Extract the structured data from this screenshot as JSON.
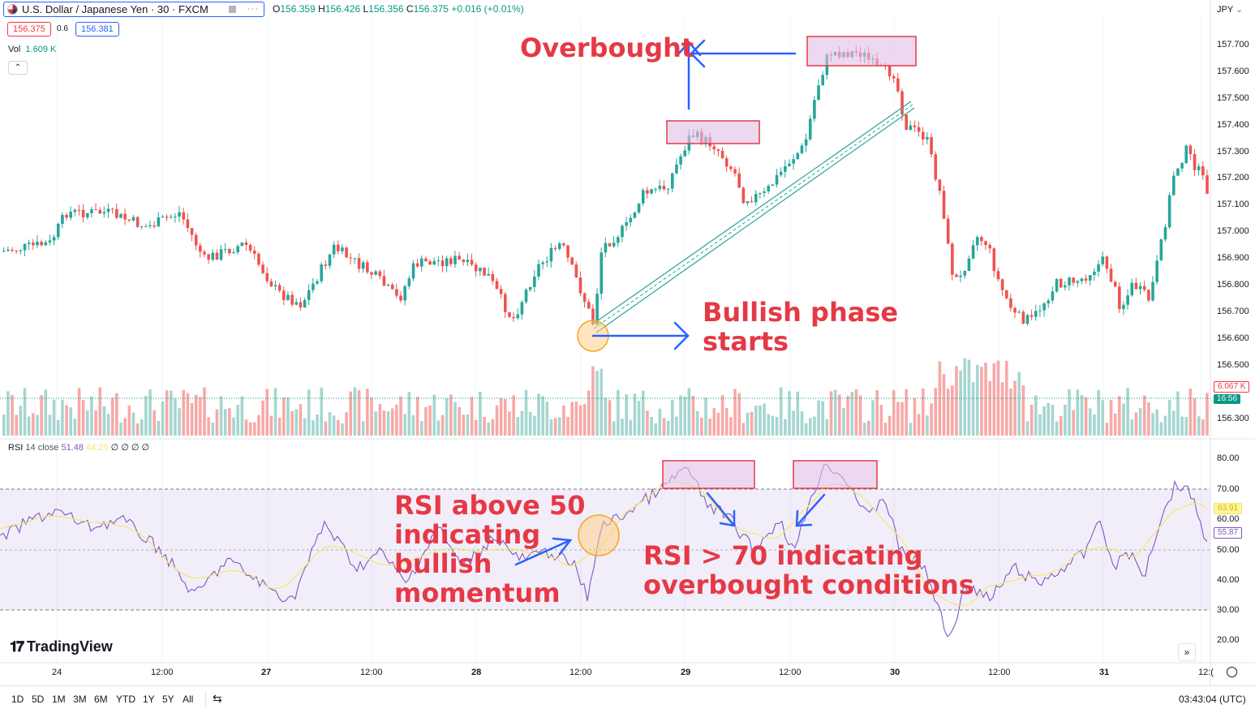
{
  "header": {
    "symbol": "U.S. Dollar / Japanese Yen · 30 · FXCM",
    "more_icon": "···",
    "ohlc": {
      "o_label": "O",
      "o": "156.359",
      "h_label": "H",
      "h": "156.426",
      "l_label": "L",
      "l": "156.356",
      "c_label": "C",
      "c": "156.375",
      "change": "+0.016 (+0.01%)"
    },
    "sell_price": "156.375",
    "spread": "0.6",
    "buy_price": "156.381",
    "vol_label": "Vol",
    "vol_value": "1.609 K",
    "currency": "JPY"
  },
  "price_axis": [
    "157.700",
    "157.600",
    "157.500",
    "157.400",
    "157.300",
    "157.200",
    "157.100",
    "157.000",
    "156.900",
    "156.800",
    "156.700",
    "156.600",
    "156.500",
    "156.300"
  ],
  "price_tags": {
    "volume_tag": "6.067 K",
    "countdown": "16:56"
  },
  "rsi": {
    "label": "RSI",
    "params": "14 close",
    "value1": "51.48",
    "value2": "44.25",
    "extras": "∅ ∅ ∅ ∅",
    "axis": [
      "80.00",
      "70.00",
      "60.00",
      "50.00",
      "40.00",
      "30.00",
      "20.00"
    ],
    "tag_ma": "63.91",
    "tag_rsi": "55.87"
  },
  "time_axis": [
    "24",
    "12:00",
    "27",
    "12:00",
    "28",
    "12:00",
    "29",
    "12:00",
    "30",
    "12:00",
    "31",
    "12:("
  ],
  "annotations": {
    "overbought": "Overbought",
    "bullish_line1": "Bullish phase",
    "bullish_line2": "starts",
    "rsi50_line1": "RSI above 50",
    "rsi50_line2": "indicating",
    "rsi50_line3": "bullish",
    "rsi50_line4": "momentum",
    "rsi70_line1": "RSI > 70 indicating",
    "rsi70_line2": "overbought conditions"
  },
  "logo": "TradingView",
  "bottom_bar": {
    "ranges": [
      "1D",
      "5D",
      "1M",
      "3M",
      "6M",
      "YTD",
      "1Y",
      "5Y",
      "All"
    ],
    "time": "03:43:04 (UTC)"
  },
  "colors": {
    "up": "#26a69a",
    "down": "#ef5350",
    "rsi_line": "#7e57c2",
    "rsi_ma": "#f5e66a",
    "annotation": "#e53945",
    "arrow": "#2962ff",
    "box_fill": "#e1bee7",
    "box_stroke": "#e53945"
  }
}
